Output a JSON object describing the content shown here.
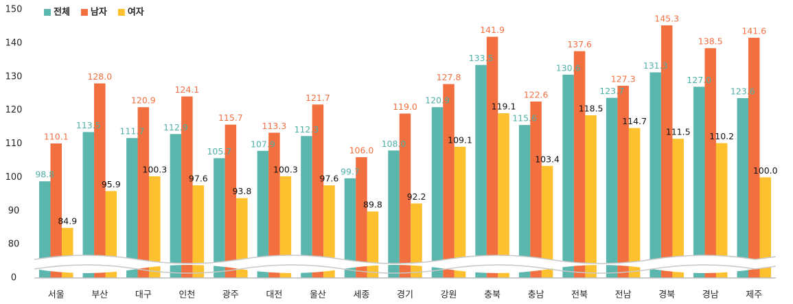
{
  "chart_data": {
    "type": "bar",
    "categories": [
      "서울",
      "부산",
      "대구",
      "인천",
      "광주",
      "대전",
      "울산",
      "세종",
      "경기",
      "강원",
      "충북",
      "충남",
      "전북",
      "전남",
      "경북",
      "경남",
      "제주"
    ],
    "series": [
      {
        "name": "전체",
        "color": "#5bb7ae",
        "label_color": "#4fb0a7",
        "values": [
          98.8,
          113.5,
          111.7,
          112.9,
          105.7,
          107.9,
          112.3,
          99.7,
          108.0,
          120.9,
          133.5,
          115.6,
          130.6,
          123.7,
          131.3,
          127.0,
          123.6
        ],
        "value_labels": [
          "98.8",
          "113.5",
          "111.7",
          "112.9",
          "105.7",
          "107.9",
          "112.3",
          "99.7",
          "108.0",
          "120.9",
          "133.5",
          "115.6",
          "130.6",
          "123.7",
          "131.3",
          "127.0",
          "123.6"
        ]
      },
      {
        "name": "남자",
        "color": "#f26f3f",
        "label_color": "#f26f3f",
        "values": [
          110.1,
          128.0,
          120.9,
          124.1,
          115.7,
          113.3,
          121.7,
          106.0,
          119.0,
          127.8,
          141.9,
          122.6,
          137.6,
          127.3,
          145.3,
          138.5,
          141.6
        ],
        "value_labels": [
          "110.1",
          "128.0",
          "120.9",
          "124.1",
          "115.7",
          "113.3",
          "121.7",
          "106.0",
          "119.0",
          "127.8",
          "141.9",
          "122.6",
          "137.6",
          "127.3",
          "145.3",
          "138.5",
          "141.6"
        ]
      },
      {
        "name": "여자",
        "color": "#fdc130",
        "label_color": "#111111",
        "values": [
          84.9,
          95.9,
          100.3,
          97.6,
          93.8,
          100.3,
          97.6,
          89.8,
          92.2,
          109.1,
          119.1,
          103.4,
          118.5,
          114.7,
          111.5,
          110.2,
          100.0
        ],
        "value_labels": [
          "84.9",
          "95.9",
          "100.3",
          "97.6",
          "93.8",
          "100.3",
          "97.6",
          "89.8",
          "92.2",
          "109.1",
          "119.1",
          "103.4",
          "118.5",
          "114.7",
          "111.5",
          "110.2",
          "100.0"
        ]
      }
    ],
    "ylim": [
      0,
      150
    ],
    "yticks": [
      0,
      80,
      90,
      100,
      110,
      120,
      130,
      140,
      150
    ],
    "y_break": [
      0,
      80
    ],
    "legend": "top-left",
    "grid": false
  }
}
